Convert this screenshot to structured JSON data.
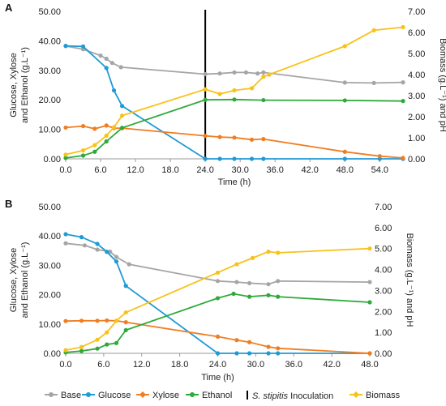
{
  "legend": [
    {
      "key": "base",
      "label": "Base",
      "color": "#a5a5a5",
      "marker": "circle"
    },
    {
      "key": "glucose",
      "label": "Glucose",
      "color": "#1f9ad6",
      "marker": "circle"
    },
    {
      "key": "xylose",
      "label": "Xylose",
      "color": "#f07d22",
      "marker": "diamond"
    },
    {
      "key": "ethanol",
      "label": "Ethanol",
      "color": "#2daa3a",
      "marker": "circle"
    },
    {
      "key": "inoculation",
      "label": "S. stipitis Inoculation",
      "label_italic": "S. stipitis",
      "label_rest": " Inoculation",
      "color": "#000000",
      "marker": "vbar"
    },
    {
      "key": "biomass",
      "label": "Biomass",
      "color": "#f8c21a",
      "marker": "diamond"
    }
  ],
  "chart_data": [
    {
      "panel": "A",
      "type": "line",
      "xlabel": "Time (h)",
      "ylabel": "Glucose, Xylose and Ethanol (g.L⁻¹)",
      "ylabel_lines": [
        "Glucose, Xylose",
        "and Ethanol (g.L⁻¹)"
      ],
      "y2label": "Biomass (g.L⁻¹) and pH",
      "xlim": [
        0,
        58
      ],
      "x_ticks": [
        "0.0",
        "6.0",
        "12.0",
        "18.0",
        "24.0",
        "30.0",
        "36.0",
        "42.0",
        "48.0",
        "54.0"
      ],
      "x_tick_values": [
        0,
        6,
        12,
        18,
        24,
        30,
        36,
        42,
        48,
        54
      ],
      "ylim": [
        0,
        50
      ],
      "y_ticks": [
        "0.00",
        "10.00",
        "20.00",
        "30.00",
        "40.00",
        "50.00"
      ],
      "y_tick_values": [
        0,
        10,
        20,
        30,
        40,
        50
      ],
      "y2lim": [
        0,
        7
      ],
      "y2_ticks": [
        "0.00",
        "1.00",
        "2.00",
        "3.00",
        "4.00",
        "5.00",
        "6.00",
        "7.00"
      ],
      "y2_tick_values": [
        0,
        1,
        2,
        3,
        4,
        5,
        6,
        7
      ],
      "inoculation_x": 24,
      "series": [
        {
          "key": "base",
          "axis": "right",
          "x": [
            0,
            3,
            6,
            7,
            8,
            9.5,
            24,
            26.5,
            29,
            31,
            33,
            34,
            48,
            53,
            58
          ],
          "y": [
            5.35,
            5.2,
            4.9,
            4.75,
            4.55,
            4.35,
            4.02,
            4.05,
            4.1,
            4.1,
            4.05,
            4.1,
            3.62,
            3.6,
            3.63
          ]
        },
        {
          "key": "glucose",
          "axis": "left",
          "x": [
            0,
            3,
            7,
            8.3,
            9.7,
            24,
            26.5,
            29,
            32,
            34,
            48,
            54,
            58
          ],
          "y": [
            38.3,
            38.1,
            30.8,
            23.2,
            17.9,
            0,
            0,
            0,
            0,
            0,
            0,
            0,
            0
          ]
        },
        {
          "key": "xylose",
          "axis": "left",
          "x": [
            0,
            3,
            5,
            7,
            8.3,
            9.7,
            24,
            26.5,
            29,
            32,
            34,
            48,
            54,
            58
          ],
          "y": [
            10.6,
            11.1,
            10.2,
            11.3,
            10.4,
            10.4,
            7.8,
            7.4,
            7.2,
            6.5,
            6.7,
            2.4,
            0.9,
            0.3
          ]
        },
        {
          "key": "ethanol",
          "axis": "left",
          "x": [
            0,
            3,
            5,
            7,
            9.7,
            24,
            29,
            34,
            48,
            58
          ],
          "y": [
            0.3,
            1.1,
            2.4,
            5.9,
            10.5,
            20.0,
            20.1,
            19.9,
            19.8,
            19.6
          ]
        },
        {
          "key": "biomass",
          "axis": "right",
          "x": [
            0,
            3,
            5,
            7,
            8.3,
            9.7,
            24,
            26.5,
            29,
            32,
            34,
            35,
            48,
            53,
            58
          ],
          "y": [
            0.2,
            0.4,
            0.65,
            1.1,
            1.5,
            2.05,
            3.3,
            3.08,
            3.25,
            3.35,
            3.9,
            4.0,
            5.35,
            6.1,
            6.25
          ]
        }
      ]
    },
    {
      "panel": "B",
      "type": "line",
      "xlabel": "Time (h)",
      "ylabel": "Glucose, Xylose and Ethanol (g.L⁻¹)",
      "ylabel_lines": [
        "Glucose, Xylose",
        "and Ethanol (g.L⁻¹)"
      ],
      "y2label": "Biomass (g.L⁻¹) and pH",
      "xlim": [
        0,
        48
      ],
      "x_ticks": [
        "0.0",
        "6.0",
        "12.0",
        "18.0",
        "24.0",
        "30.0",
        "36.0",
        "42.0",
        "48.0"
      ],
      "x_tick_values": [
        0,
        6,
        12,
        18,
        24,
        30,
        36,
        42,
        48
      ],
      "ylim": [
        0,
        50
      ],
      "y_ticks": [
        "0.00",
        "10.00",
        "20.00",
        "30.00",
        "40.00",
        "50.00"
      ],
      "y_tick_values": [
        0,
        10,
        20,
        30,
        40,
        50
      ],
      "y2lim": [
        0,
        7
      ],
      "y2_ticks": [
        "0.00",
        "1.00",
        "2.00",
        "3.00",
        "4.00",
        "5.00",
        "6.00",
        "7.00"
      ],
      "y2_tick_values": [
        0,
        1,
        2,
        3,
        4,
        5,
        6,
        7
      ],
      "inoculation_x": null,
      "series": [
        {
          "key": "base",
          "axis": "right",
          "x": [
            0,
            3,
            5,
            7,
            8,
            10,
            24,
            27,
            29,
            32,
            33.5,
            48
          ],
          "y": [
            5.25,
            5.15,
            4.95,
            4.85,
            4.6,
            4.25,
            3.45,
            3.4,
            3.35,
            3.3,
            3.45,
            3.4
          ]
        },
        {
          "key": "glucose",
          "axis": "left",
          "x": [
            0,
            2.5,
            5,
            6.5,
            8,
            9.5,
            24,
            27,
            29,
            32,
            33.5,
            48
          ],
          "y": [
            40.6,
            39.6,
            37.3,
            34.6,
            31.3,
            23.0,
            0,
            0,
            0,
            0,
            0,
            0
          ]
        },
        {
          "key": "xylose",
          "axis": "left",
          "x": [
            0,
            2.5,
            5,
            6.5,
            8,
            9.5,
            24,
            27,
            29,
            32,
            33.5,
            48
          ],
          "y": [
            11.0,
            11.1,
            11.1,
            11.2,
            11.1,
            10.6,
            5.7,
            4.5,
            3.8,
            2.2,
            1.7,
            0
          ]
        },
        {
          "key": "ethanol",
          "axis": "left",
          "x": [
            0,
            2.5,
            5,
            6.5,
            8,
            9.5,
            24,
            26.5,
            29,
            32,
            33.5,
            48
          ],
          "y": [
            0.3,
            0.8,
            1.6,
            3.0,
            3.5,
            7.9,
            18.8,
            20.3,
            19.3,
            19.8,
            19.3,
            17.4
          ]
        },
        {
          "key": "biomass",
          "axis": "right",
          "x": [
            0,
            2.5,
            5,
            6.5,
            8,
            9.5,
            24,
            27,
            29.5,
            32,
            33.5,
            48
          ],
          "y": [
            0.15,
            0.3,
            0.65,
            1.0,
            1.55,
            1.95,
            3.85,
            4.25,
            4.55,
            4.85,
            4.8,
            5.0
          ]
        }
      ]
    }
  ]
}
